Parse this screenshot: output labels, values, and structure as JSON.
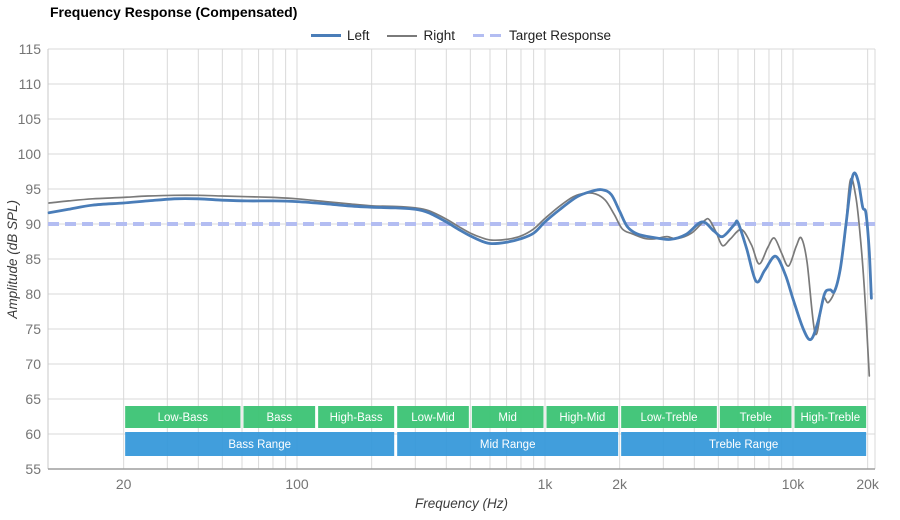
{
  "chart_data": {
    "type": "line",
    "title": "Frequency Response (Compensated)",
    "xlabel": "Frequency (Hz)",
    "ylabel": "Amplitude (dB SPL)",
    "x_scale": "log",
    "x_domain_hz": [
      10,
      21400
    ],
    "y_domain_db": [
      55,
      115
    ],
    "grid_db_step": 5,
    "y_ticks": [
      55,
      60,
      65,
      70,
      75,
      80,
      85,
      90,
      95,
      100,
      105,
      110,
      115
    ],
    "x_ticks": [
      {
        "hz": 20,
        "label": "20"
      },
      {
        "hz": 100,
        "label": "100"
      },
      {
        "hz": 1000,
        "label": "1k"
      },
      {
        "hz": 2000,
        "label": "2k"
      },
      {
        "hz": 10000,
        "label": "10k"
      },
      {
        "hz": 20000,
        "label": "20k"
      }
    ],
    "grid_hz": [
      20,
      30,
      40,
      50,
      60,
      70,
      80,
      90,
      100,
      200,
      300,
      400,
      500,
      600,
      700,
      800,
      900,
      1000,
      2000,
      3000,
      4000,
      5000,
      6000,
      7000,
      8000,
      9000,
      10000,
      20000
    ],
    "grid_color": "#d9d9d9",
    "axis_color": "#9e9e9e",
    "tick_label_color": "#757575",
    "target_response_db": 90,
    "legend": [
      {
        "label": "Left",
        "color": "#4a7db8",
        "style": "solid",
        "weight": "thick"
      },
      {
        "label": "Right",
        "color": "#7a7a7a",
        "style": "solid",
        "weight": "thin"
      },
      {
        "label": "Target Response",
        "color": "#b3bdf2",
        "style": "dashed"
      }
    ],
    "series": [
      {
        "name": "Left",
        "color": "#4a7db8",
        "stroke_width": 2.8,
        "points_hz_db": [
          [
            10,
            91.6
          ],
          [
            12,
            92.1
          ],
          [
            15,
            92.7
          ],
          [
            20,
            93.0
          ],
          [
            25,
            93.3
          ],
          [
            32,
            93.6
          ],
          [
            40,
            93.6
          ],
          [
            50,
            93.4
          ],
          [
            63,
            93.3
          ],
          [
            80,
            93.3
          ],
          [
            100,
            93.2
          ],
          [
            130,
            92.9
          ],
          [
            160,
            92.6
          ],
          [
            200,
            92.4
          ],
          [
            250,
            92.3
          ],
          [
            300,
            92.1
          ],
          [
            340,
            91.6
          ],
          [
            400,
            90.3
          ],
          [
            450,
            89.2
          ],
          [
            500,
            88.3
          ],
          [
            560,
            87.5
          ],
          [
            610,
            87.2
          ],
          [
            700,
            87.4
          ],
          [
            800,
            87.9
          ],
          [
            900,
            88.7
          ],
          [
            1000,
            90.3
          ],
          [
            1150,
            92.1
          ],
          [
            1350,
            93.9
          ],
          [
            1550,
            94.7
          ],
          [
            1700,
            94.9
          ],
          [
            1850,
            94.2
          ],
          [
            2000,
            91.8
          ],
          [
            2150,
            89.6
          ],
          [
            2350,
            88.6
          ],
          [
            2700,
            88.1
          ],
          [
            3200,
            87.8
          ],
          [
            3700,
            88.5
          ],
          [
            4300,
            90.3
          ],
          [
            4800,
            89.0
          ],
          [
            5200,
            88.2
          ],
          [
            5800,
            89.9
          ],
          [
            6000,
            90.2
          ],
          [
            6500,
            86.5
          ],
          [
            7100,
            81.8
          ],
          [
            7700,
            83.4
          ],
          [
            8500,
            85.4
          ],
          [
            9300,
            82.8
          ],
          [
            10000,
            79.3
          ],
          [
            11000,
            75.0
          ],
          [
            11800,
            73.5
          ],
          [
            12600,
            76.0
          ],
          [
            13400,
            80.0
          ],
          [
            14100,
            80.6
          ],
          [
            14700,
            80.4
          ],
          [
            15500,
            83.5
          ],
          [
            16300,
            89.5
          ],
          [
            17100,
            95.5
          ],
          [
            17700,
            97.3
          ],
          [
            18400,
            95.8
          ],
          [
            19100,
            92.4
          ],
          [
            19700,
            91.5
          ],
          [
            20300,
            86.0
          ],
          [
            20700,
            79.4
          ]
        ]
      },
      {
        "name": "Right",
        "color": "#7a7a7a",
        "stroke_width": 1.7,
        "points_hz_db": [
          [
            10,
            93.0
          ],
          [
            12,
            93.3
          ],
          [
            15,
            93.6
          ],
          [
            20,
            93.8
          ],
          [
            25,
            94.0
          ],
          [
            32,
            94.1
          ],
          [
            40,
            94.1
          ],
          [
            50,
            94.0
          ],
          [
            63,
            93.9
          ],
          [
            80,
            93.8
          ],
          [
            100,
            93.6
          ],
          [
            130,
            93.2
          ],
          [
            160,
            92.9
          ],
          [
            200,
            92.6
          ],
          [
            250,
            92.5
          ],
          [
            300,
            92.3
          ],
          [
            340,
            91.9
          ],
          [
            400,
            90.7
          ],
          [
            450,
            89.6
          ],
          [
            500,
            88.7
          ],
          [
            560,
            88.0
          ],
          [
            610,
            87.7
          ],
          [
            700,
            87.8
          ],
          [
            800,
            88.3
          ],
          [
            900,
            89.3
          ],
          [
            1000,
            90.8
          ],
          [
            1150,
            92.6
          ],
          [
            1300,
            93.9
          ],
          [
            1450,
            94.4
          ],
          [
            1600,
            94.3
          ],
          [
            1750,
            93.4
          ],
          [
            1900,
            91.4
          ],
          [
            2050,
            89.3
          ],
          [
            2250,
            88.6
          ],
          [
            2550,
            87.9
          ],
          [
            2800,
            87.9
          ],
          [
            3100,
            88.2
          ],
          [
            3400,
            87.9
          ],
          [
            3900,
            88.7
          ],
          [
            4400,
            90.5
          ],
          [
            4600,
            90.6
          ],
          [
            4900,
            88.8
          ],
          [
            5200,
            86.9
          ],
          [
            5600,
            87.9
          ],
          [
            6200,
            89.2
          ],
          [
            6800,
            87.0
          ],
          [
            7300,
            84.3
          ],
          [
            7900,
            86.6
          ],
          [
            8400,
            88.0
          ],
          [
            9000,
            85.8
          ],
          [
            9600,
            84.0
          ],
          [
            10300,
            86.8
          ],
          [
            10800,
            88.0
          ],
          [
            11400,
            84.5
          ],
          [
            12300,
            74.3
          ],
          [
            13200,
            79.3
          ],
          [
            13900,
            78.8
          ],
          [
            15000,
            81.3
          ],
          [
            16100,
            87.5
          ],
          [
            17000,
            96.2
          ],
          [
            17900,
            94.0
          ],
          [
            18700,
            88.0
          ],
          [
            19500,
            79.5
          ],
          [
            20300,
            68.3
          ]
        ]
      }
    ],
    "bands": {
      "sub_color": "#3cc474",
      "range_color": "#3799db",
      "text_color": "#ffffff",
      "sub_bands": [
        {
          "label": "Low-Bass",
          "from_hz": 20,
          "to_hz": 60
        },
        {
          "label": "Bass",
          "from_hz": 60,
          "to_hz": 120
        },
        {
          "label": "High-Bass",
          "from_hz": 120,
          "to_hz": 250
        },
        {
          "label": "Low-Mid",
          "from_hz": 250,
          "to_hz": 500
        },
        {
          "label": "Mid",
          "from_hz": 500,
          "to_hz": 1000
        },
        {
          "label": "High-Mid",
          "from_hz": 1000,
          "to_hz": 2000
        },
        {
          "label": "Low-Treble",
          "from_hz": 2000,
          "to_hz": 5000
        },
        {
          "label": "Treble",
          "from_hz": 5000,
          "to_hz": 10000
        },
        {
          "label": "High-Treble",
          "from_hz": 10000,
          "to_hz": 20000
        }
      ],
      "range_bands": [
        {
          "label": "Bass Range",
          "from_hz": 20,
          "to_hz": 250
        },
        {
          "label": "Mid Range",
          "from_hz": 250,
          "to_hz": 2000
        },
        {
          "label": "Treble Range",
          "from_hz": 2000,
          "to_hz": 20000
        }
      ]
    }
  }
}
